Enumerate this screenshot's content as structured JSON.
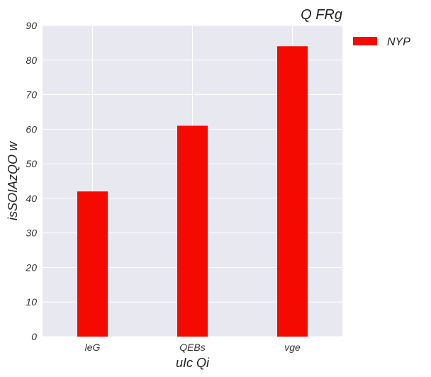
{
  "chart_data": {
    "type": "bar",
    "title": "Q FRg",
    "xlabel": "uIc Qi",
    "ylabel": "isSOIAzQO w",
    "categories": [
      "leG",
      "QEBs",
      "vge"
    ],
    "series": [
      {
        "name": "NYP",
        "values": [
          42,
          61,
          84
        ],
        "color": "#f50a00"
      }
    ],
    "ylim": [
      0,
      90
    ],
    "yticks": [
      0,
      10,
      20,
      30,
      40,
      50,
      60,
      70,
      80,
      90
    ],
    "grid": true,
    "legend": "top-right-outside",
    "background": "#e8e8f0"
  }
}
